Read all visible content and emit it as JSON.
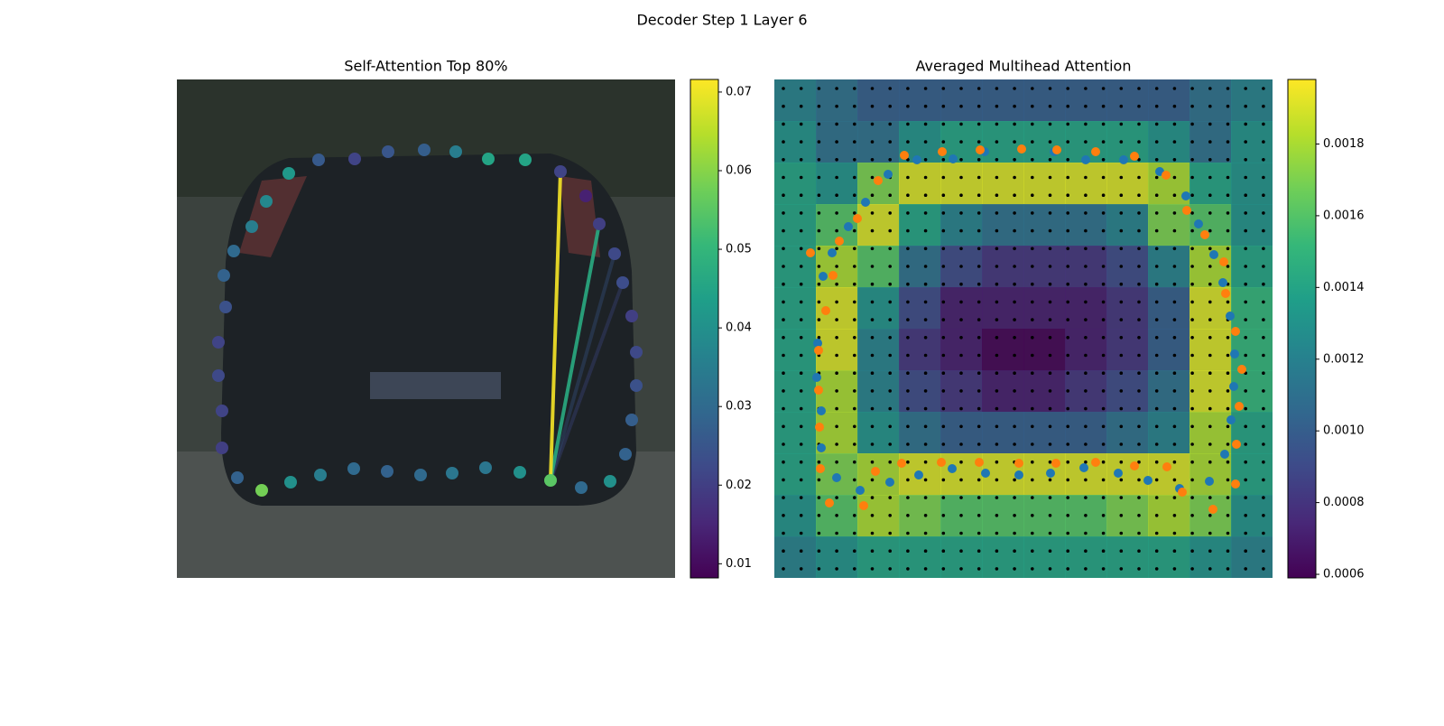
{
  "title": "Decoder Step 1 Layer 6",
  "chart_data": [
    {
      "type": "scatter",
      "title": "Self-Attention Top 80%",
      "colormap": "viridis",
      "xlim": [
        0,
        552
      ],
      "ylim": [
        552,
        0
      ],
      "clim": [
        0.0082,
        0.0716
      ],
      "cticks": [
        0.01,
        0.02,
        0.03,
        0.04,
        0.05,
        0.06,
        0.07
      ],
      "x": [
        124,
        157,
        197,
        234,
        274,
        309,
        345,
        386,
        425,
        453,
        468,
        485,
        494,
        504,
        509,
        509,
        504,
        497,
        480,
        448,
        414,
        380,
        342,
        305,
        270,
        233,
        196,
        159,
        126,
        94,
        67,
        50,
        50,
        46,
        46,
        54,
        52,
        63,
        83,
        99
      ],
      "y": [
        104,
        89,
        88,
        80,
        78,
        80,
        88,
        89,
        102,
        129,
        160,
        193,
        225,
        262,
        302,
        339,
        377,
        415,
        445,
        452,
        444,
        435,
        430,
        436,
        438,
        434,
        431,
        438,
        446,
        455,
        441,
        408,
        367,
        328,
        291,
        252,
        217,
        190,
        163,
        135
      ],
      "values": [
        0.042,
        0.026,
        0.021,
        0.025,
        0.027,
        0.035,
        0.045,
        0.045,
        0.021,
        0.014,
        0.02,
        0.022,
        0.023,
        0.02,
        0.022,
        0.024,
        0.027,
        0.028,
        0.04,
        0.03,
        0.055,
        0.04,
        0.033,
        0.033,
        0.03,
        0.028,
        0.03,
        0.035,
        0.04,
        0.058,
        0.028,
        0.02,
        0.021,
        0.022,
        0.021,
        0.024,
        0.028,
        0.03,
        0.035,
        0.038
      ],
      "edges": [
        {
          "source": 12,
          "target": 20,
          "value": 0.022
        },
        {
          "source": 11,
          "target": 20,
          "value": 0.025
        },
        {
          "source": 10,
          "target": 20,
          "value": 0.047
        },
        {
          "source": 8,
          "target": 20,
          "value": 0.071
        }
      ]
    },
    {
      "type": "heatmap",
      "title": "Averaged Multihead Attention",
      "colormap": "viridis",
      "xlim": [
        0,
        552
      ],
      "ylim": [
        552,
        0
      ],
      "clim": [
        0.00059,
        0.00198
      ],
      "cticks": [
        0.0006,
        0.0008,
        {
          "value": 0.001,
          "label": "0.0010"
        },
        0.0012,
        0.0014,
        0.0016,
        0.0018
      ],
      "z": [
        [
          0.0012,
          0.0011,
          0.001,
          0.001,
          0.001,
          0.001,
          0.001,
          0.001,
          0.001,
          0.001,
          0.0011,
          0.0012
        ],
        [
          0.0013,
          0.0011,
          0.0011,
          0.0013,
          0.0014,
          0.0014,
          0.0014,
          0.0014,
          0.0014,
          0.0013,
          0.0011,
          0.0013
        ],
        [
          0.0014,
          0.0013,
          0.0017,
          0.0019,
          0.0019,
          0.0019,
          0.0019,
          0.0019,
          0.0019,
          0.0018,
          0.0014,
          0.0013
        ],
        [
          0.0014,
          0.0016,
          0.0019,
          0.0014,
          0.0012,
          0.0011,
          0.0011,
          0.0011,
          0.0012,
          0.0017,
          0.0016,
          0.0013
        ],
        [
          0.0014,
          0.0018,
          0.0016,
          0.0011,
          0.0009,
          0.0008,
          0.0008,
          0.0008,
          0.0009,
          0.0012,
          0.0018,
          0.0014
        ],
        [
          0.0014,
          0.0019,
          0.0013,
          0.0009,
          0.0007,
          0.0007,
          0.0007,
          0.0007,
          0.0008,
          0.001,
          0.0019,
          0.0015
        ],
        [
          0.0014,
          0.0019,
          0.0012,
          0.0008,
          0.0007,
          0.0006,
          0.0006,
          0.0007,
          0.0008,
          0.001,
          0.0019,
          0.0015
        ],
        [
          0.0014,
          0.0018,
          0.0012,
          0.0009,
          0.0008,
          0.0007,
          0.0007,
          0.0008,
          0.0009,
          0.0011,
          0.0019,
          0.0015
        ],
        [
          0.0014,
          0.0018,
          0.0013,
          0.0011,
          0.001,
          0.001,
          0.001,
          0.001,
          0.0011,
          0.0012,
          0.0018,
          0.0014
        ],
        [
          0.0014,
          0.0017,
          0.0018,
          0.0019,
          0.0019,
          0.0019,
          0.0019,
          0.0019,
          0.0019,
          0.0019,
          0.0018,
          0.0014
        ],
        [
          0.0013,
          0.0016,
          0.0018,
          0.0017,
          0.0016,
          0.0016,
          0.0016,
          0.0016,
          0.0017,
          0.0018,
          0.0017,
          0.0013
        ],
        [
          0.0012,
          0.0013,
          0.0014,
          0.0014,
          0.0014,
          0.0014,
          0.0014,
          0.0014,
          0.0014,
          0.0014,
          0.0013,
          0.0012
        ]
      ],
      "series": [
        {
          "color": "#1f77b4",
          "x": [
            126,
            158,
            198,
            233,
            310,
            345,
            387,
            427,
            456,
            470,
            487,
            497,
            505,
            510,
            509,
            506,
            499,
            482,
            449,
            414,
            381,
            343,
            306,
            271,
            234,
            197,
            160,
            128,
            95,
            69,
            52,
            52,
            47,
            48,
            54,
            64,
            82,
            101
          ],
          "y": [
            105,
            89,
            88,
            80,
            80,
            89,
            89,
            102,
            129,
            160,
            194,
            225,
            262,
            304,
            340,
            377,
            415,
            445,
            453,
            444,
            436,
            430,
            436,
            438,
            436,
            431,
            438,
            446,
            455,
            441,
            408,
            367,
            330,
            292,
            218,
            192,
            163,
            136
          ]
        },
        {
          "color": "#ff7f0e",
          "x": [
            40,
            72,
            92,
            115,
            144,
            186,
            228,
            274,
            313,
            356,
            399,
            434,
            457,
            477,
            498,
            500,
            511,
            518,
            515,
            512,
            511,
            486,
            452,
            435,
            399,
            356,
            312,
            271,
            227,
            185,
            141,
            112,
            99,
            61,
            51,
            50,
            49,
            49,
            57,
            65
          ],
          "y": [
            192,
            179,
            154,
            112,
            84,
            80,
            78,
            77,
            78,
            80,
            85,
            106,
            145,
            172,
            202,
            237,
            279,
            321,
            362,
            404,
            448,
            476,
            457,
            429,
            428,
            424,
            425,
            425,
            424,
            424,
            425,
            434,
            472,
            469,
            431,
            385,
            344,
            300,
            256,
            217
          ]
        }
      ]
    }
  ]
}
